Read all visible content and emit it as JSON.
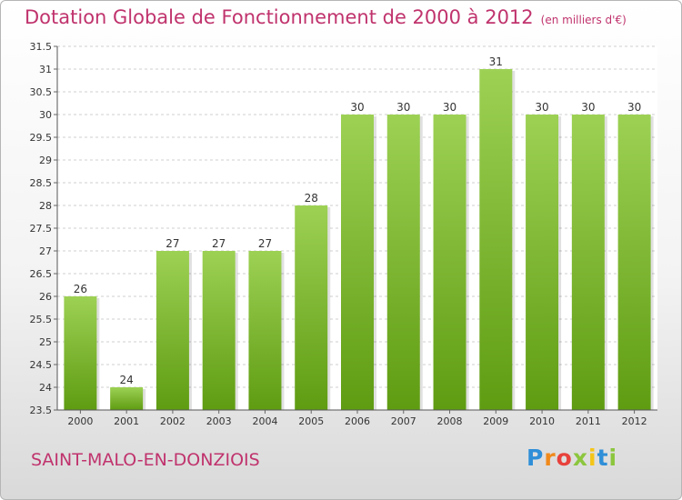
{
  "header": {
    "title": "Dotation Globale de Fonctionnement de 2000 à 2012",
    "unit": "(en milliers d'€)"
  },
  "footer": {
    "place": "SAINT-MALO-EN-DONZIOIS",
    "logo": "Proxiti"
  },
  "colors": {
    "title": "#c0336d",
    "bar_top": "#9dd154",
    "bar_bottom": "#5f9c12",
    "grid": "#cfcfcf"
  },
  "chart_data": {
    "type": "bar",
    "title": "Dotation Globale de Fonctionnement de 2000 à 2012",
    "subtitle": "(en milliers d'€)",
    "categories": [
      "2000",
      "2001",
      "2002",
      "2003",
      "2004",
      "2005",
      "2006",
      "2007",
      "2008",
      "2009",
      "2010",
      "2011",
      "2012"
    ],
    "values": [
      26,
      24,
      27,
      27,
      27,
      28,
      30,
      30,
      30,
      31,
      30,
      30,
      30
    ],
    "ylim": [
      23.5,
      31.5
    ],
    "yticks": [
      "23.5",
      "24",
      "24.5",
      "25",
      "25.5",
      "26",
      "26.5",
      "27",
      "27.5",
      "28",
      "28.5",
      "29",
      "29.5",
      "30",
      "30.5",
      "31",
      "31.5"
    ],
    "grid": true,
    "xlabel": "",
    "ylabel": ""
  }
}
